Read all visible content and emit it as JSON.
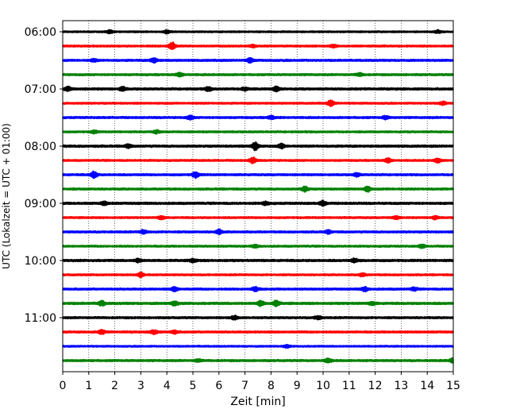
{
  "chart_data": {
    "type": "line",
    "title": "",
    "xlabel": "Zeit  [min]",
    "ylabel": "UTC (Lokalzeit = UTC + 01:00)",
    "xlim": [
      0,
      15
    ],
    "x_ticks": [
      "0",
      "1",
      "2",
      "3",
      "4",
      "5",
      "6",
      "7",
      "8",
      "9",
      "10",
      "11",
      "12",
      "13",
      "14",
      "15"
    ],
    "y_tick_labels": [
      "06:00",
      "07:00",
      "08:00",
      "09:00",
      "10:00",
      "11:00"
    ],
    "grid": "vertical-dotted",
    "trace_colors": [
      "#000000",
      "#ff0000",
      "#0000ff",
      "#008000"
    ],
    "traces": [
      {
        "start": "06:00",
        "amp": 0.9,
        "events": [
          [
            1.8,
            2.0
          ],
          [
            4.0,
            1.8
          ],
          [
            14.4,
            1.8
          ]
        ]
      },
      {
        "start": "06:15",
        "amp": 1.0,
        "events": [
          [
            4.2,
            4.5
          ],
          [
            10.4,
            1.6
          ],
          [
            7.3,
            1.3
          ]
        ]
      },
      {
        "start": "06:30",
        "amp": 1.1,
        "events": [
          [
            3.5,
            2.8
          ],
          [
            7.2,
            2.5
          ],
          [
            1.2,
            1.5
          ]
        ]
      },
      {
        "start": "06:45",
        "amp": 1.1,
        "events": [
          [
            4.5,
            2.0
          ],
          [
            11.4,
            1.6
          ]
        ]
      },
      {
        "start": "07:00",
        "amp": 1.2,
        "events": [
          [
            0.2,
            2.5
          ],
          [
            2.3,
            2.2
          ],
          [
            5.6,
            2.2
          ],
          [
            8.2,
            3.0
          ],
          [
            7.0,
            1.8
          ]
        ]
      },
      {
        "start": "07:15",
        "amp": 1.0,
        "events": [
          [
            10.3,
            3.4
          ],
          [
            14.6,
            1.8
          ]
        ]
      },
      {
        "start": "07:30",
        "amp": 1.1,
        "events": [
          [
            4.9,
            2.2
          ],
          [
            8.0,
            1.9
          ],
          [
            12.4,
            1.8
          ]
        ]
      },
      {
        "start": "07:45",
        "amp": 1.0,
        "events": [
          [
            1.2,
            1.6
          ],
          [
            3.6,
            1.8
          ]
        ]
      },
      {
        "start": "08:00",
        "amp": 1.2,
        "events": [
          [
            2.5,
            2.0
          ],
          [
            7.4,
            4.8
          ],
          [
            8.4,
            2.6
          ]
        ]
      },
      {
        "start": "08:15",
        "amp": 1.0,
        "events": [
          [
            7.3,
            3.5
          ],
          [
            12.5,
            2.4
          ],
          [
            14.4,
            2.4
          ]
        ]
      },
      {
        "start": "08:30",
        "amp": 1.1,
        "events": [
          [
            1.2,
            3.8
          ],
          [
            5.1,
            3.4
          ],
          [
            11.3,
            1.8
          ]
        ]
      },
      {
        "start": "08:45",
        "amp": 1.1,
        "events": [
          [
            9.3,
            3.0
          ],
          [
            11.7,
            3.0
          ]
        ]
      },
      {
        "start": "09:00",
        "amp": 1.2,
        "events": [
          [
            1.6,
            2.0
          ],
          [
            10.0,
            2.8
          ],
          [
            7.8,
            1.8
          ]
        ]
      },
      {
        "start": "09:15",
        "amp": 1.0,
        "events": [
          [
            3.8,
            2.0
          ],
          [
            12.8,
            1.8
          ],
          [
            14.3,
            1.8
          ]
        ]
      },
      {
        "start": "09:30",
        "amp": 1.1,
        "events": [
          [
            3.1,
            2.2
          ],
          [
            6.0,
            2.6
          ],
          [
            10.2,
            1.8
          ]
        ]
      },
      {
        "start": "09:45",
        "amp": 1.0,
        "events": [
          [
            13.8,
            2.0
          ],
          [
            7.4,
            1.6
          ]
        ]
      },
      {
        "start": "10:00",
        "amp": 1.2,
        "events": [
          [
            2.9,
            2.0
          ],
          [
            5.0,
            2.0
          ],
          [
            11.2,
            1.8
          ]
        ]
      },
      {
        "start": "10:15",
        "amp": 1.0,
        "events": [
          [
            3.0,
            2.8
          ],
          [
            11.5,
            1.8
          ]
        ]
      },
      {
        "start": "10:30",
        "amp": 1.1,
        "events": [
          [
            4.3,
            2.4
          ],
          [
            7.4,
            2.6
          ],
          [
            11.6,
            2.4
          ],
          [
            13.5,
            1.8
          ]
        ]
      },
      {
        "start": "10:45",
        "amp": 1.2,
        "events": [
          [
            1.5,
            2.6
          ],
          [
            4.3,
            2.4
          ],
          [
            7.6,
            2.8
          ],
          [
            8.2,
            3.0
          ],
          [
            11.9,
            1.8
          ]
        ]
      },
      {
        "start": "11:00",
        "amp": 1.1,
        "events": [
          [
            6.6,
            2.0
          ],
          [
            9.8,
            2.0
          ]
        ]
      },
      {
        "start": "11:15",
        "amp": 1.1,
        "events": [
          [
            1.5,
            2.4
          ],
          [
            3.5,
            2.6
          ],
          [
            4.3,
            1.8
          ]
        ]
      },
      {
        "start": "11:30",
        "amp": 0.9,
        "events": [
          [
            8.6,
            1.5
          ]
        ]
      },
      {
        "start": "11:45",
        "amp": 1.1,
        "events": [
          [
            10.2,
            2.4
          ],
          [
            15.0,
            2.8
          ],
          [
            5.2,
            1.5
          ]
        ]
      }
    ]
  }
}
